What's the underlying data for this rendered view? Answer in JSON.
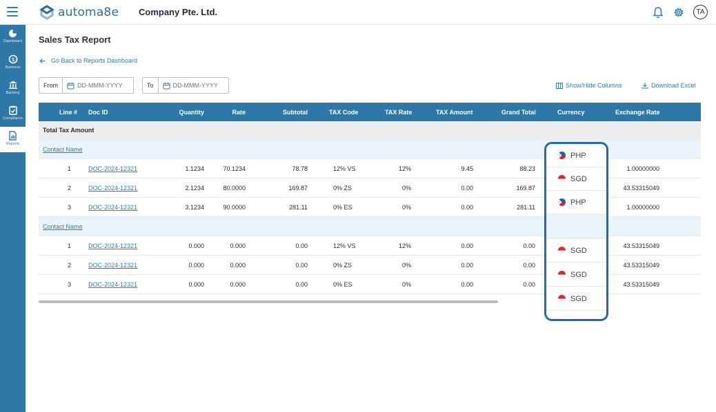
{
  "app": {
    "logo_text": "automa8e",
    "company": "Company Pte. Ltd.",
    "avatar": "TA",
    "accent_color": "#2e78a8"
  },
  "sidebar": {
    "items": [
      {
        "label": "Dashboard",
        "icon": "pie-chart-icon"
      },
      {
        "label": "Business",
        "icon": "dollar-cycle-icon"
      },
      {
        "label": "Banking",
        "icon": "bank-icon"
      },
      {
        "label": "Compliance",
        "icon": "clipboard-check-icon"
      },
      {
        "label": "Reports",
        "icon": "report-icon"
      }
    ]
  },
  "page": {
    "title": "Sales Tax Report",
    "back_link": "Go Back to Reports Dashboard"
  },
  "filters": {
    "from_label": "From",
    "from_placeholder": "DD-MMM-YYYY",
    "to_label": "To",
    "to_placeholder": "DD-MMM-YYYY"
  },
  "toolbar": {
    "show_hide": "Show/Hide Columns",
    "download": "Download Excel"
  },
  "table": {
    "headers": [
      "Line #",
      "Doc ID",
      "Quantity",
      "Rate",
      "Subtotal",
      "TAX Code",
      "TAX Rate",
      "TAX Amount",
      "Grand Total",
      "Currency",
      "Exchange Rate"
    ],
    "total_label": "Total Tax Amount",
    "groups": [
      {
        "contact": "Contact Name",
        "rows": [
          {
            "line": "1",
            "doc": "DOC-2024-12321",
            "qty": "1.1234",
            "rate": "70.1234",
            "subtotal": "78.78",
            "code": "12% VS",
            "tax_rate": "12%",
            "tax_amount": "9.45",
            "grand": "88.23",
            "fx": "1.00000000"
          },
          {
            "line": "2",
            "doc": "DOC-2024-12321",
            "qty": "2.1234",
            "rate": "80.0000",
            "subtotal": "169.87",
            "code": "0% ZS",
            "tax_rate": "0%",
            "tax_amount": "0.00",
            "grand": "169.87",
            "fx": "43.53315049"
          },
          {
            "line": "3",
            "doc": "DOC-2024-12321",
            "qty": "3.1234",
            "rate": "90.0000",
            "subtotal": "281.11",
            "code": "0% ES",
            "tax_rate": "0%",
            "tax_amount": "0.00",
            "grand": "281.11",
            "fx": "1.00000000"
          }
        ]
      },
      {
        "contact": "Contact Name",
        "rows": [
          {
            "line": "1",
            "doc": "DOC-2024-12321",
            "qty": "0.000",
            "rate": "0.000",
            "subtotal": "0.00",
            "code": "12% VS",
            "tax_rate": "12%",
            "tax_amount": "0.00",
            "grand": "0.00",
            "fx": "43.53315049"
          },
          {
            "line": "2",
            "doc": "DOC-2024-12321",
            "qty": "0.000",
            "rate": "0.000",
            "subtotal": "0.00",
            "code": "0% ZS",
            "tax_rate": "0%",
            "tax_amount": "0.00",
            "grand": "0.00",
            "fx": "43.53315049"
          },
          {
            "line": "3",
            "doc": "DOC-2024-12321",
            "qty": "0.000",
            "rate": "0.000",
            "subtotal": "0.00",
            "code": "0% ES",
            "tax_rate": "0%",
            "tax_amount": "0.00",
            "grand": "0.00",
            "fx": "43.53315049"
          }
        ]
      }
    ]
  },
  "currency_column": {
    "options": [
      {
        "code": "PHP",
        "flag": "philippines-flag-icon"
      },
      {
        "code": "SGD",
        "flag": "singapore-flag-icon"
      },
      {
        "code": "PHP",
        "flag": "philippines-flag-icon"
      },
      {
        "code": "",
        "flag": ""
      },
      {
        "code": "SGD",
        "flag": "singapore-flag-icon"
      },
      {
        "code": "SGD",
        "flag": "singapore-flag-icon"
      },
      {
        "code": "SGD",
        "flag": "singapore-flag-icon"
      }
    ]
  }
}
